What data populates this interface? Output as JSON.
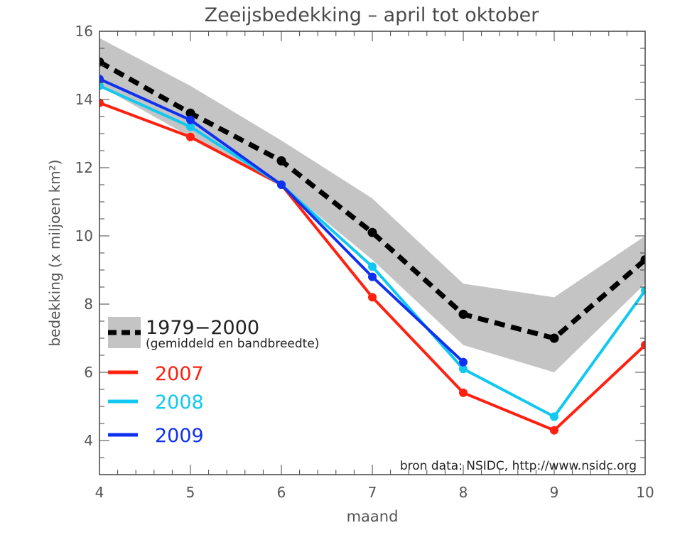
{
  "chart_data": {
    "type": "line",
    "title": "Zeeijsbedekking – april tot oktober",
    "xlabel": "maand",
    "ylabel": "bedekking (x miljoen km²)",
    "xlim": [
      4,
      10
    ],
    "ylim": [
      3,
      16
    ],
    "x_ticks": [
      4,
      5,
      6,
      7,
      8,
      9,
      10
    ],
    "y_ticks": [
      4,
      6,
      8,
      10,
      12,
      14,
      16
    ],
    "band": {
      "x": [
        4,
        5,
        6,
        7,
        8,
        9,
        10
      ],
      "upper": [
        15.8,
        14.4,
        12.8,
        11.1,
        8.6,
        8.2,
        10.0
      ],
      "lower": [
        14.4,
        12.9,
        11.5,
        9.3,
        6.8,
        6.0,
        8.6
      ],
      "color": "#c4c4c4"
    },
    "series": [
      {
        "name": "1979−2000",
        "x": [
          4,
          5,
          6,
          7,
          8,
          9,
          10
        ],
        "values": [
          15.1,
          13.6,
          12.2,
          10.1,
          7.7,
          7.0,
          9.3
        ],
        "color": "#000000",
        "dashed": true
      },
      {
        "name": "2007",
        "x": [
          4,
          5,
          6,
          7,
          8,
          9,
          10
        ],
        "values": [
          13.9,
          12.9,
          11.5,
          8.2,
          5.4,
          4.3,
          6.8
        ],
        "color": "#ff2010",
        "dashed": false
      },
      {
        "name": "2008",
        "x": [
          4,
          5,
          6,
          7,
          8,
          9,
          10
        ],
        "values": [
          14.4,
          13.2,
          11.5,
          9.1,
          6.1,
          4.7,
          8.4
        ],
        "color": "#10c8f0",
        "dashed": false
      },
      {
        "name": "2009",
        "x": [
          4,
          5,
          6,
          7,
          8
        ],
        "values": [
          14.6,
          13.4,
          11.5,
          8.8,
          6.3
        ],
        "color": "#1030f0",
        "dashed": false
      }
    ],
    "legend": {
      "position": "bottom-left",
      "mean_label": "1979−2000",
      "mean_sublabel": "(gemiddeld en bandbreedte)",
      "items": [
        {
          "label": "2007",
          "color": "#ff2010"
        },
        {
          "label": "2008",
          "color": "#10c8f0"
        },
        {
          "label": "2009",
          "color": "#1030f0"
        }
      ]
    },
    "source_note": "bron data: NSIDC, http://www.nsidc.org"
  }
}
